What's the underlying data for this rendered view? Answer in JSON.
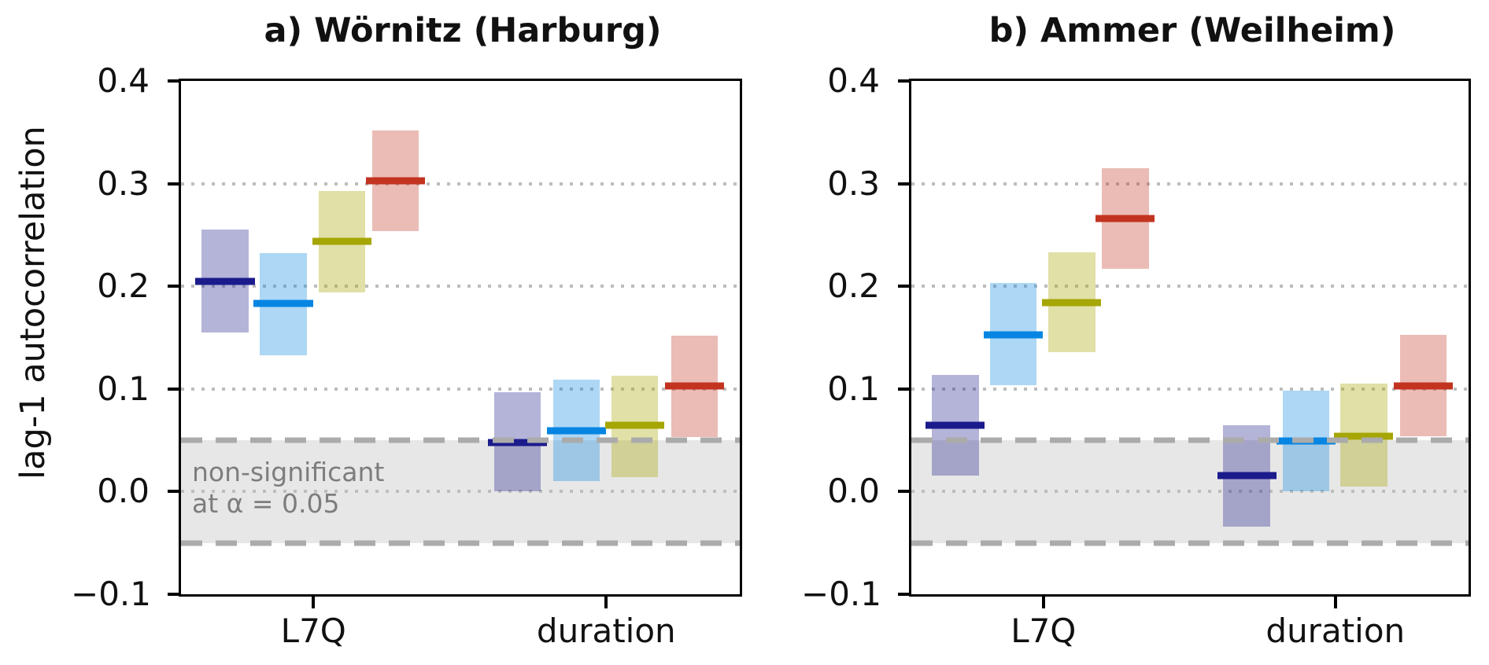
{
  "chart_data": {
    "type": "box",
    "ylabel": "lag-1 autocorrelation",
    "ylim": [
      -0.1,
      0.4
    ],
    "yticks": [
      {
        "v": 0.4,
        "label": "0.4"
      },
      {
        "v": 0.3,
        "label": "0.3"
      },
      {
        "v": 0.2,
        "label": "0.2"
      },
      {
        "v": 0.1,
        "label": "0.1"
      },
      {
        "v": 0.0,
        "label": "0.0"
      },
      {
        "v": -0.1,
        "label": "−0.1"
      }
    ],
    "gridlines": [
      0.3,
      0.2,
      0.1,
      0.0
    ],
    "grid_on": true,
    "legend": "none",
    "band": {
      "low": -0.05,
      "high": 0.05,
      "fill": "#e7e7e7",
      "border": "#ababab",
      "note": [
        "non-significant",
        "at α = 0.05"
      ]
    },
    "categories": [
      "L7Q",
      "duration"
    ],
    "series": [
      {
        "name": "series-1-darkblue",
        "line": "#1b1b8c",
        "fill": "#1b1b8c54"
      },
      {
        "name": "series-2-blue",
        "line": "#0685e2",
        "fill": "#0685e254"
      },
      {
        "name": "series-3-olive",
        "line": "#a6a604",
        "fill": "#a6a60459"
      },
      {
        "name": "series-4-red",
        "line": "#c33420",
        "fill": "#c3342054"
      }
    ],
    "panels": [
      {
        "id": "a",
        "title": "a) Wörnitz (Harburg)",
        "show_band_note": true,
        "values": {
          "L7Q": [
            {
              "low": 0.155,
              "mid": 0.205,
              "high": 0.255
            },
            {
              "low": 0.133,
              "mid": 0.183,
              "high": 0.232
            },
            {
              "low": 0.194,
              "mid": 0.244,
              "high": 0.293
            },
            {
              "low": 0.254,
              "mid": 0.303,
              "high": 0.352
            }
          ],
          "duration": [
            {
              "low": 0.0,
              "mid": 0.048,
              "high": 0.097
            },
            {
              "low": 0.01,
              "mid": 0.059,
              "high": 0.109
            },
            {
              "low": 0.014,
              "mid": 0.065,
              "high": 0.113
            },
            {
              "low": 0.053,
              "mid": 0.103,
              "high": 0.152
            }
          ]
        }
      },
      {
        "id": "b",
        "title": "b) Ammer (Weilheim)",
        "show_band_note": false,
        "values": {
          "L7Q": [
            {
              "low": 0.016,
              "mid": 0.065,
              "high": 0.114
            },
            {
              "low": 0.104,
              "mid": 0.153,
              "high": 0.203
            },
            {
              "low": 0.136,
              "mid": 0.184,
              "high": 0.233
            },
            {
              "low": 0.217,
              "mid": 0.266,
              "high": 0.315
            }
          ],
          "duration": [
            {
              "low": -0.034,
              "mid": 0.016,
              "high": 0.065
            },
            {
              "low": 0.0,
              "mid": 0.049,
              "high": 0.098
            },
            {
              "low": 0.005,
              "mid": 0.054,
              "high": 0.105
            },
            {
              "low": 0.054,
              "mid": 0.103,
              "high": 0.153
            }
          ]
        }
      }
    ],
    "layout": {
      "cluster_centers_frac": [
        0.237,
        0.761
      ],
      "box_left_frac": {
        "L7Q": [
          0.037,
          0.141,
          0.246,
          0.342
        ],
        "duration": [
          0.56,
          0.666,
          0.77,
          0.877
        ]
      },
      "box_width_frac": 0.084,
      "line_overhang_frac": 0.011
    }
  }
}
